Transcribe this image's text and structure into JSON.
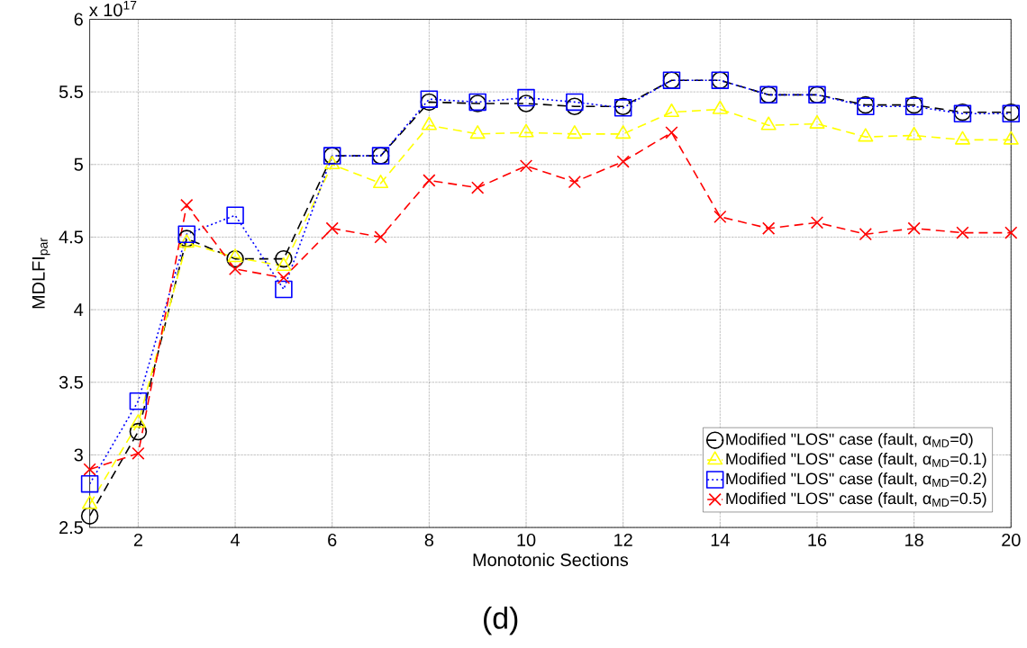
{
  "chart_data": {
    "type": "line",
    "xlabel": "Monotonic Sections",
    "ylabel": "MDLFI$_{par}$",
    "annotations": [
      "x 10$^{17}$",
      "(d)"
    ],
    "x": [
      1,
      2,
      3,
      4,
      5,
      6,
      7,
      8,
      9,
      10,
      11,
      12,
      13,
      14,
      15,
      16,
      17,
      18,
      19,
      20
    ],
    "series": [
      {
        "name": "Modified \"LOS\" case (fault, α$_{MD}$=0)",
        "color": "#000000",
        "marker": "circle",
        "line_style": "dashed",
        "values": [
          2.58,
          3.16,
          4.49,
          4.35,
          4.35,
          5.06,
          5.06,
          5.43,
          5.42,
          5.42,
          5.4,
          5.4,
          5.58,
          5.58,
          5.48,
          5.48,
          5.41,
          5.41,
          5.36,
          5.36
        ]
      },
      {
        "name": "Modified \"LOS\" case (fault, α$_{MD}$=0.1)",
        "color": "#ffff00",
        "marker": "triangle",
        "line_style": "dashed",
        "values": [
          2.66,
          3.22,
          4.46,
          4.36,
          4.3,
          5.0,
          4.87,
          5.27,
          5.21,
          5.22,
          5.21,
          5.21,
          5.36,
          5.38,
          5.27,
          5.28,
          5.19,
          5.2,
          5.17,
          5.17
        ]
      },
      {
        "name": "Modified \"LOS\" case (fault, α$_{MD}$=0.2)",
        "color": "#0000ff",
        "marker": "square",
        "line_style": "dotted",
        "values": [
          2.8,
          3.37,
          4.52,
          4.65,
          4.14,
          5.06,
          5.06,
          5.45,
          5.43,
          5.46,
          5.43,
          5.39,
          5.58,
          5.58,
          5.48,
          5.48,
          5.4,
          5.4,
          5.35,
          5.35
        ]
      },
      {
        "name": "Modified \"LOS\" case (fault, α$_{MD}$=0.5)",
        "color": "#ff0000",
        "marker": "cross",
        "line_style": "dashed",
        "values": [
          2.9,
          3.01,
          4.72,
          4.28,
          4.22,
          4.56,
          4.5,
          4.89,
          4.84,
          4.99,
          4.88,
          5.02,
          5.22,
          4.64,
          4.56,
          4.6,
          4.52,
          4.56,
          4.53,
          4.53
        ]
      }
    ],
    "xlim": [
      1,
      20
    ],
    "xticks": [
      2,
      4,
      6,
      8,
      10,
      12,
      14,
      16,
      18,
      20
    ],
    "ylim": [
      2.5,
      6
    ],
    "yticks": [
      2.5,
      3,
      3.5,
      4,
      4.5,
      5,
      5.5,
      6
    ],
    "grid": true,
    "legend": "bottom right"
  }
}
